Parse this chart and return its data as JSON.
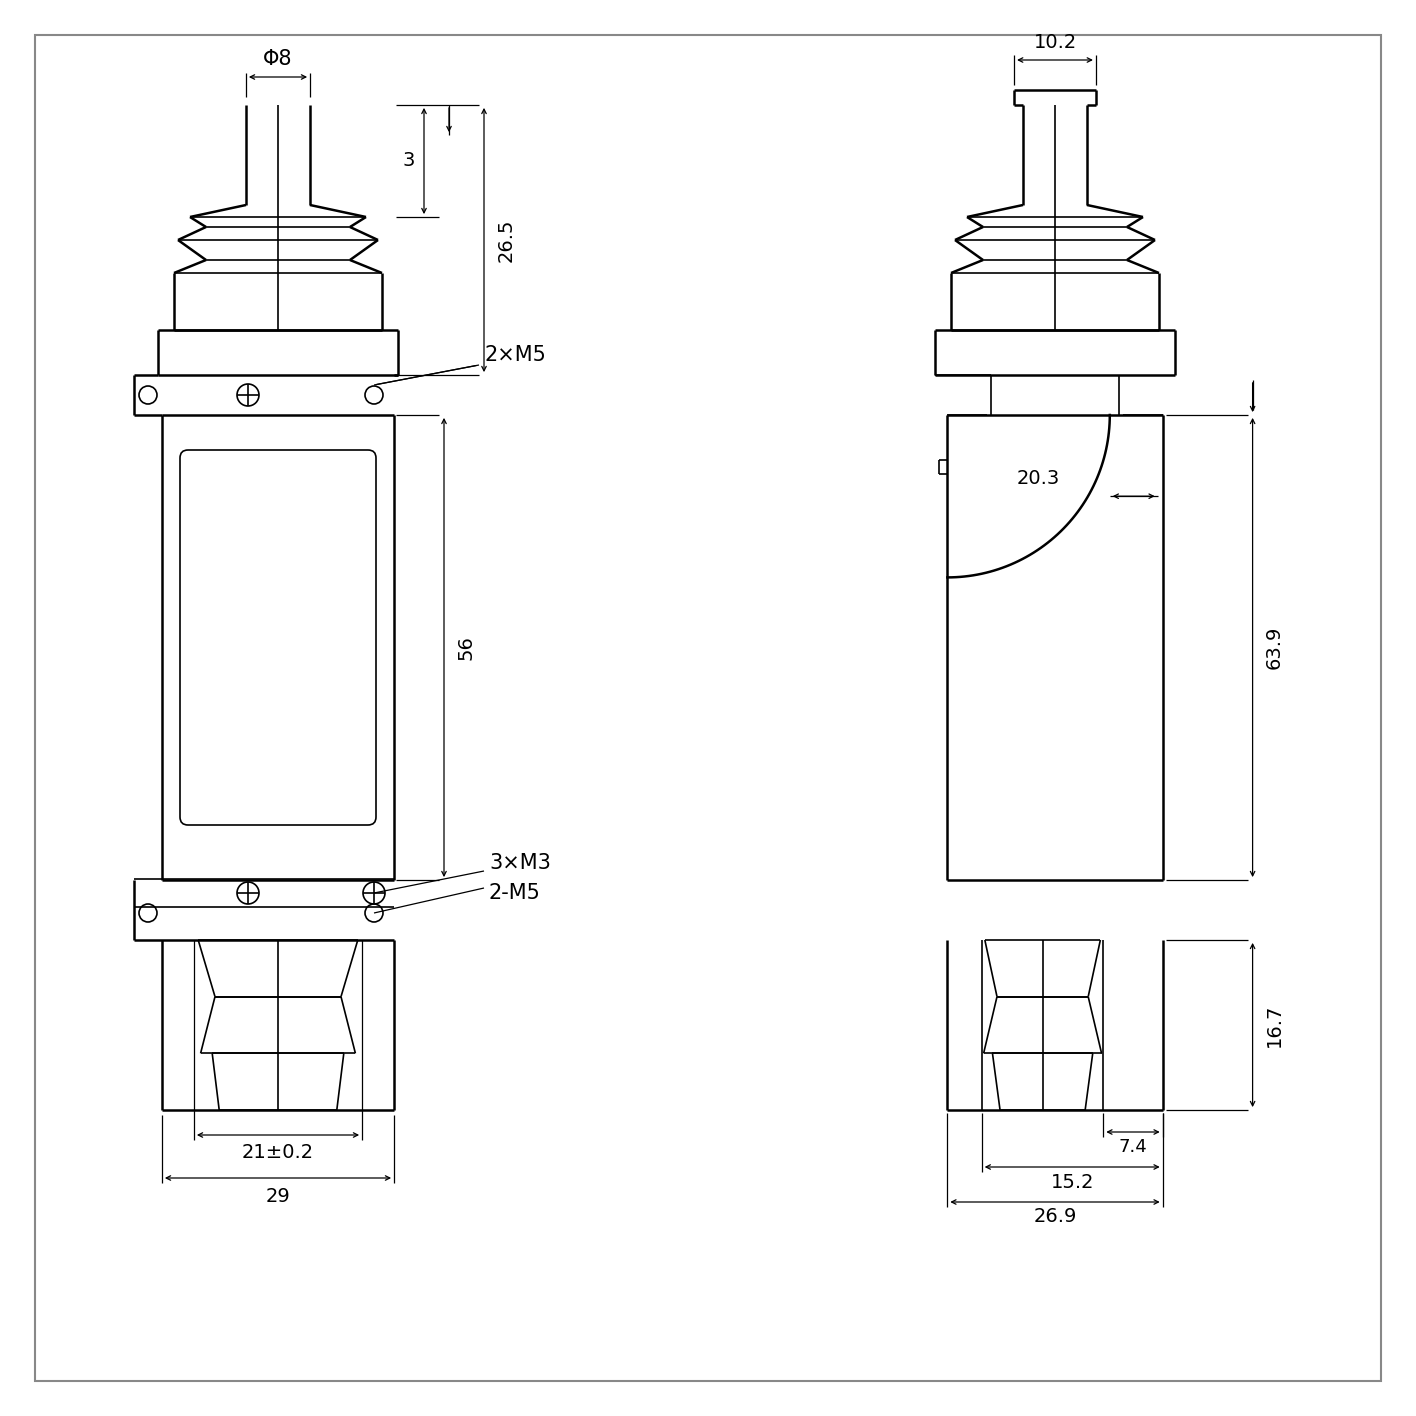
{
  "bg_color": "#ffffff",
  "line_color": "#000000",
  "dims": {
    "phi8": "Φ8",
    "d26_5": "26.5",
    "d3": "3",
    "d2xM5": "2×M5",
    "d56": "56",
    "d3xM3": "3×M3",
    "d2_M5": "2-M5",
    "d21": "21±0.2",
    "d29": "29",
    "d10_2": "10.2",
    "d20_3": "20.3",
    "d63_9": "63.9",
    "d16_7": "16.7",
    "d7_4": "7.4",
    "d15_2": "15.2",
    "d26_9": "26.9"
  }
}
